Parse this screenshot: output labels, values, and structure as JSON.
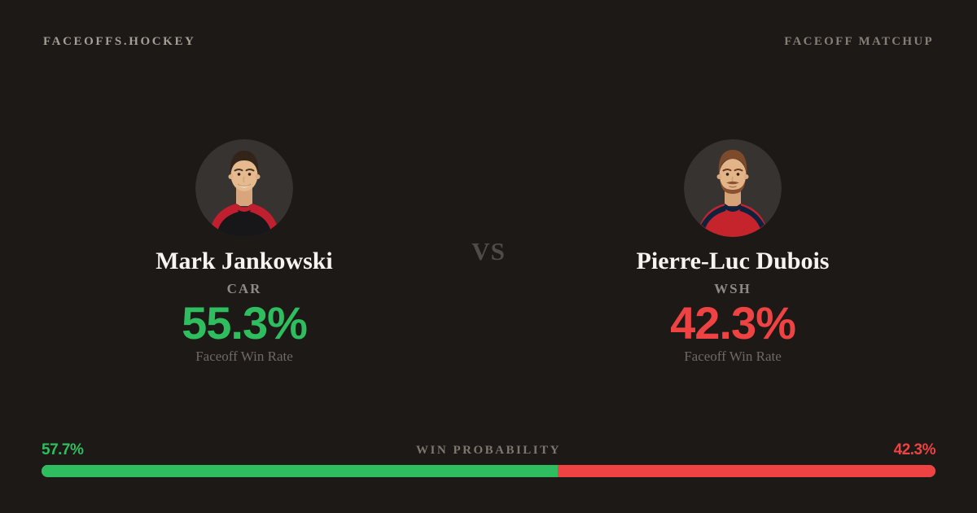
{
  "colors": {
    "background": "#1c1916",
    "avatar_background": "#363331",
    "green": "#2ebe5f",
    "red": "#ef4343",
    "name_text": "#f7f4f0",
    "muted_text": "#8e8a85",
    "faint_text": "#6f6962"
  },
  "header": {
    "brand": "FACEOFFS.HOCKEY",
    "page_label": "FACEOFF MATCHUP"
  },
  "matchup": {
    "vs_label": "VS",
    "players": {
      "left": {
        "name": "Mark Jankowski",
        "team": "CAR",
        "faceoff_win_rate": "55.3%",
        "stat_label": "Faceoff Win Rate"
      },
      "right": {
        "name": "Pierre-Luc Dubois",
        "team": "WSH",
        "faceoff_win_rate": "42.3%",
        "stat_label": "Faceoff Win Rate"
      }
    }
  },
  "win_probability": {
    "label": "WIN PROBABILITY",
    "left": {
      "value": "57.7%",
      "pct": 57.7
    },
    "right": {
      "value": "42.3%",
      "pct": 42.3
    }
  }
}
